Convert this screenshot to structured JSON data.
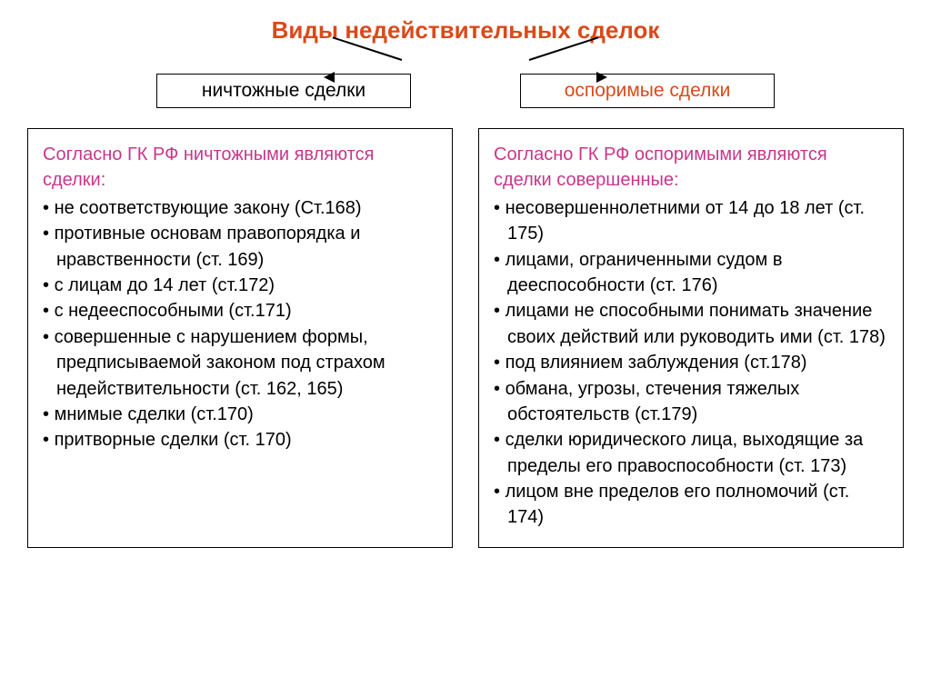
{
  "colors": {
    "title": "#d94a1a",
    "branch_left": "#000000",
    "branch_right": "#d94a1a",
    "intro": "#c8368c",
    "text": "#000000",
    "border": "#000000",
    "background": "#ffffff"
  },
  "fonts": {
    "title_size": 26,
    "branch_size": 21,
    "body_size": 20
  },
  "title": "Виды недействительных сделок",
  "branches": {
    "left": {
      "label": "ничтожные сделки"
    },
    "right": {
      "label": "оспоримые сделки"
    }
  },
  "left_box": {
    "intro": "Согласно ГК РФ ничтожными являются сделки:",
    "items": [
      "не соответствующие закону (Ст.168)",
      "противные основам правопорядка и нравственности (ст. 169)",
      "с лицам до 14 лет (ст.172)",
      "с недееспособными (ст.171)",
      "совершенные с нарушением формы, предписываемой законом под страхом недействительности (ст. 162, 165)",
      "мнимые сделки (ст.170)",
      "притворные сделки (ст. 170)"
    ]
  },
  "right_box": {
    "intro": "Согласно ГК РФ оспоримыми являются сделки совершенные:",
    "items": [
      "несовершеннолетними от 14 до 18 лет (ст. 175)",
      "лицами, ограниченными судом в дееспособности (ст. 176)",
      "лицами не способными понимать значение своих действий или руководить ими (ст. 178)",
      "под влиянием заблуждения (ст.178)",
      "обмана, угрозы, стечения тяжелых обстоятельств (ст.179)",
      "сделки юридического лица, выходящие за пределы его правоспособности (ст. 173)",
      "лицом вне пределов его полномочий (ст. 174)"
    ]
  }
}
